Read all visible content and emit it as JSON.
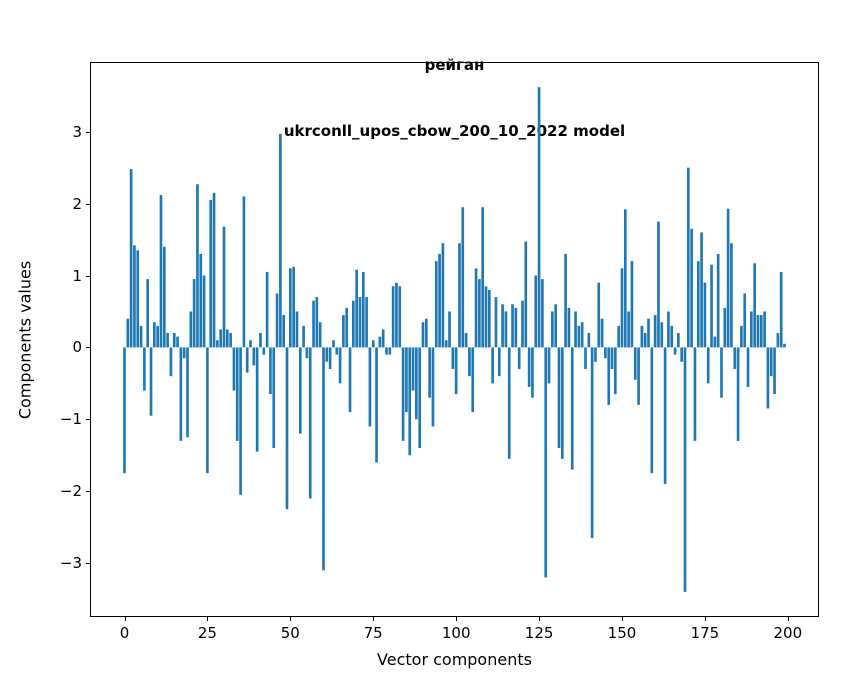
{
  "chart_data": {
    "type": "bar",
    "title_line1": "рейган",
    "title_line2": "ukrconll_upos_cbow_200_10_2022 model",
    "xlabel": "Vector components",
    "ylabel": "Components values",
    "bar_color": "#1f77b4",
    "spine_color": "#000000",
    "bar_width": 0.8,
    "xlim": [
      -10.4,
      209.4
    ],
    "ylim": [
      -3.75,
      3.97
    ],
    "xticks": [
      0,
      25,
      50,
      75,
      100,
      125,
      150,
      175,
      200
    ],
    "yticks": [
      -3,
      -2,
      -1,
      0,
      1,
      2,
      3
    ],
    "x_start": 0,
    "values": [
      -1.75,
      0.4,
      2.48,
      1.42,
      1.35,
      0.3,
      -0.6,
      0.95,
      -0.95,
      0.35,
      0.3,
      2.12,
      1.4,
      0.2,
      -0.4,
      0.2,
      0.15,
      -1.3,
      -0.15,
      -1.25,
      0.5,
      0.95,
      2.27,
      1.3,
      1.0,
      -1.75,
      2.05,
      2.15,
      0.1,
      0.25,
      1.68,
      0.25,
      0.2,
      -0.6,
      -1.3,
      -2.05,
      2.1,
      -0.35,
      0.1,
      -0.25,
      -1.45,
      0.2,
      -0.1,
      1.05,
      -0.65,
      -1.4,
      0.75,
      2.97,
      0.45,
      -2.25,
      1.1,
      1.12,
      0.5,
      -1.2,
      0.3,
      -0.15,
      -2.1,
      0.65,
      0.7,
      0.35,
      -3.1,
      -0.2,
      -0.3,
      0.1,
      -0.1,
      -0.5,
      0.45,
      0.55,
      -0.9,
      0.65,
      1.08,
      0.7,
      1.05,
      0.7,
      -1.1,
      0.1,
      -1.6,
      0.15,
      0.25,
      -0.1,
      -0.1,
      0.85,
      0.9,
      0.85,
      -1.3,
      -0.9,
      -1.5,
      -0.6,
      -1.0,
      -1.4,
      0.35,
      0.4,
      -0.7,
      -1.1,
      1.2,
      1.3,
      1.45,
      0.1,
      0.5,
      -0.3,
      -0.65,
      1.45,
      1.95,
      0.2,
      -0.4,
      -0.9,
      1.1,
      0.95,
      1.95,
      0.85,
      0.8,
      -0.5,
      0.7,
      -0.4,
      0.6,
      0.5,
      -1.55,
      0.6,
      0.55,
      -0.3,
      0.65,
      1.47,
      -0.55,
      -0.7,
      1.0,
      3.62,
      0.95,
      -3.2,
      -0.5,
      0.5,
      0.6,
      -1.4,
      -1.55,
      1.3,
      0.55,
      -1.7,
      0.5,
      0.3,
      0.35,
      -0.3,
      0.2,
      -2.65,
      -0.2,
      0.9,
      0.4,
      -0.15,
      -0.8,
      -0.3,
      -0.65,
      0.3,
      1.1,
      1.92,
      0.5,
      1.2,
      -0.45,
      -0.8,
      0.3,
      0.2,
      0.4,
      -1.75,
      0.45,
      1.75,
      0.35,
      -1.9,
      0.5,
      0.3,
      -0.1,
      0.2,
      -0.2,
      -3.4,
      2.5,
      1.65,
      -1.3,
      1.2,
      1.6,
      0.9,
      -0.5,
      1.15,
      0.15,
      1.3,
      -0.7,
      0.55,
      1.93,
      1.45,
      -0.3,
      -1.3,
      0.3,
      0.75,
      -0.55,
      0.5,
      1.17,
      0.45,
      0.45,
      0.5,
      -0.85,
      -0.4,
      -0.65,
      0.2,
      1.05,
      0.05
    ]
  }
}
